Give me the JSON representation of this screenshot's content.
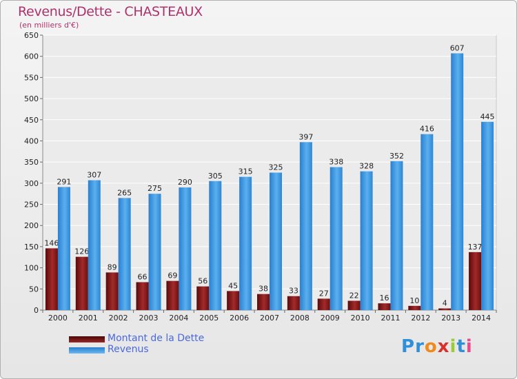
{
  "title": "Revenus/Dette - CHASTEAUX",
  "subtitle": "(en milliers d'€)",
  "logo": {
    "text": "Proxiti",
    "letters": [
      "P",
      "r",
      "o",
      "x",
      "i",
      "t",
      "i"
    ],
    "colors": [
      "#2f8fd8",
      "#2f8fd8",
      "#f08a1c",
      "#d8302a",
      "#9acd32",
      "#2f8fd8",
      "#e84a8a"
    ]
  },
  "colors": {
    "dette": "#7a1414",
    "revenus": "#3a98e0",
    "title": "#b0306a"
  },
  "chart_data": {
    "type": "bar",
    "title": "Revenus/Dette - CHASTEAUX",
    "subtitle": "(en milliers d'€)",
    "xlabel": "",
    "ylabel": "",
    "ylim": [
      0,
      650
    ],
    "yticks": [
      0,
      50,
      100,
      150,
      200,
      250,
      300,
      350,
      400,
      450,
      500,
      550,
      600,
      650
    ],
    "grid": true,
    "legend": "bottom-left",
    "categories": [
      "2000",
      "2001",
      "2002",
      "2003",
      "2004",
      "2005",
      "2006",
      "2007",
      "2008",
      "2009",
      "2010",
      "2011",
      "2012",
      "2013",
      "2014"
    ],
    "series": [
      {
        "name": "Montant de la Dette",
        "values": [
          146,
          126,
          89,
          66,
          69,
          56,
          45,
          38,
          33,
          27,
          22,
          16,
          10,
          4,
          137
        ]
      },
      {
        "name": "Revenus",
        "values": [
          291,
          307,
          265,
          275,
          290,
          305,
          315,
          325,
          397,
          338,
          328,
          352,
          416,
          607,
          445
        ]
      }
    ]
  }
}
